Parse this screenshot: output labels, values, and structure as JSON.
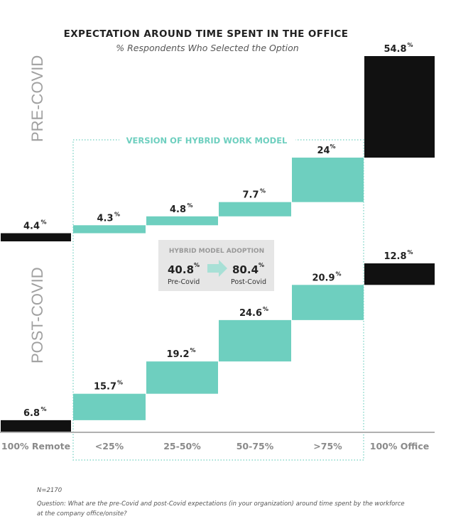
{
  "chart_data": {
    "type": "bar",
    "title": "EXPECTATION AROUND TIME SPENT IN THE OFFICE",
    "subtitle": "% Respondents Who Selected the Option",
    "categories": [
      "100% Remote",
      "<25%",
      "25-50%",
      "50-75%",
      ">75%",
      "100% Office"
    ],
    "series": [
      {
        "name": "PRE-COVID",
        "values": [
          4.4,
          4.3,
          4.8,
          7.7,
          24,
          54.8
        ],
        "labels": [
          "4.4",
          "4.3",
          "4.8",
          "7.7",
          "24",
          "54.8"
        ]
      },
      {
        "name": "POST-COVID",
        "values": [
          6.8,
          15.7,
          19.2,
          24.6,
          20.9,
          12.8
        ],
        "labels": [
          "6.8",
          "15.7",
          "19.2",
          "24.6",
          "20.9",
          "12.8"
        ]
      }
    ],
    "unit_symbol": "%",
    "layout": "stacked waterfall",
    "group_label": "VERSION OF HYBRID WORK MODEL",
    "colors": {
      "extreme": "#111111",
      "hybrid": "#6ecfbf",
      "axis": "#b0b0b0",
      "box": "#e6e6e6"
    }
  },
  "callout": {
    "title": "HYBRID MODEL ADOPTION",
    "pre_value": "40.8",
    "pre_label": "Pre-Covid",
    "post_value": "80.4",
    "post_label": "Post-Covid",
    "pct": "%"
  },
  "footer": {
    "n": "N=2170",
    "question_line1": "Question: What are the pre-Covid and post-Covid expectations (in your organization) around time spent by the workforce",
    "question_line2": "at the company office/onsite?"
  }
}
